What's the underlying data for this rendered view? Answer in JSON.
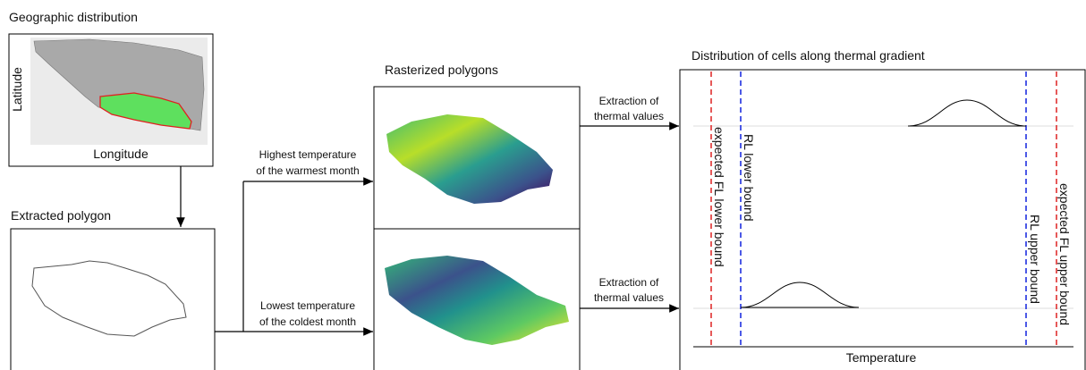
{
  "geographic": {
    "title": "Geographic distribution",
    "x_label": "Longitude",
    "y_label": "Latitude"
  },
  "extracted": {
    "title": "Extracted polygon"
  },
  "rasterized": {
    "title": "Rasterized polygons"
  },
  "temperature_arrows": [
    {
      "lines": [
        "Highest temperature",
        "of the warmest month"
      ]
    },
    {
      "lines": [
        "Lowest temperature",
        "of the coldest month"
      ]
    }
  ],
  "extraction_arrows": [
    {
      "lines": [
        "Extraction of",
        "thermal values"
      ]
    },
    {
      "lines": [
        "Extraction of",
        "thermal values"
      ]
    }
  ],
  "distribution": {
    "title": "Distribution of cells along thermal gradient",
    "x_label": "Temperature",
    "bounds": [
      "expected FL lower bound",
      "RL lower bound",
      "RL upper bound",
      "expected FL upper bound"
    ]
  }
}
